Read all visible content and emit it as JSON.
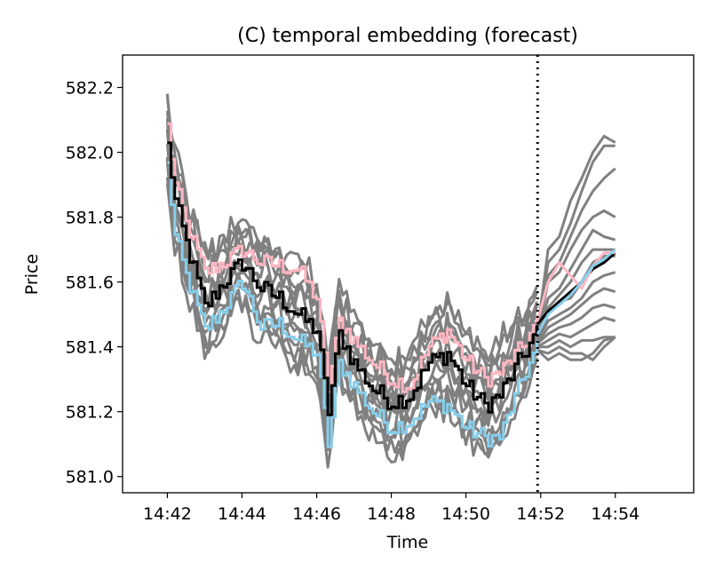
{
  "chart_data": {
    "type": "line",
    "title": "(C) temporal embedding (forecast)",
    "xlabel": "Time",
    "ylabel": "Price",
    "xlim": [
      14.68,
      14.935
    ],
    "ylim": [
      580.95,
      582.3
    ],
    "x_ticks": [
      {
        "value": 14.7,
        "label": "14:42"
      },
      {
        "value": 14.7333,
        "label": "14:44"
      },
      {
        "value": 14.7667,
        "label": "14:46"
      },
      {
        "value": 14.8,
        "label": "14:48"
      },
      {
        "value": 14.8333,
        "label": "14:50"
      },
      {
        "value": 14.8667,
        "label": "14:52"
      },
      {
        "value": 14.9,
        "label": "14:54"
      }
    ],
    "y_ticks": [
      {
        "value": 581.0,
        "label": "581.0"
      },
      {
        "value": 581.2,
        "label": "581.2"
      },
      {
        "value": 581.4,
        "label": "581.4"
      },
      {
        "value": 581.6,
        "label": "581.6"
      },
      {
        "value": 581.8,
        "label": "581.8"
      },
      {
        "value": 582.0,
        "label": "582.0"
      },
      {
        "value": 582.2,
        "label": "582.2"
      }
    ],
    "forecast_start": 14.8653,
    "colors": {
      "ensemble": "#808080",
      "mean": "#000000",
      "upper": "#ffb6c1",
      "lower": "#87ceeb",
      "divider": "#000000"
    },
    "anchors": {
      "x": [
        14.7,
        14.7033,
        14.7083,
        14.7167,
        14.725,
        14.7333,
        14.7417,
        14.75,
        14.7583,
        14.7667,
        14.7717,
        14.7767,
        14.7833,
        14.7917,
        14.8,
        14.8083,
        14.8167,
        14.825,
        14.8333,
        14.8417,
        14.8483,
        14.8583,
        14.8653
      ],
      "mean": [
        582.02,
        581.85,
        581.72,
        581.52,
        581.6,
        581.66,
        581.58,
        581.55,
        581.5,
        581.45,
        581.2,
        581.44,
        581.35,
        581.27,
        581.23,
        581.25,
        581.35,
        581.38,
        581.28,
        581.22,
        581.25,
        581.37,
        581.45
      ],
      "upper": [
        582.08,
        581.9,
        581.78,
        581.63,
        581.66,
        581.7,
        581.66,
        581.65,
        581.64,
        581.55,
        581.27,
        581.48,
        581.42,
        581.35,
        581.3,
        581.28,
        581.4,
        581.45,
        581.36,
        581.3,
        581.32,
        581.4,
        581.48
      ],
      "lower": [
        581.96,
        581.74,
        581.62,
        581.45,
        581.52,
        581.6,
        581.46,
        581.47,
        581.42,
        581.38,
        581.1,
        581.35,
        581.28,
        581.2,
        581.15,
        581.17,
        581.23,
        581.22,
        581.15,
        581.12,
        581.12,
        581.3,
        581.4
      ]
    },
    "ensemble_count": 14,
    "series": [
      {
        "name": "mean",
        "x": [
          14.8653,
          14.87,
          14.875,
          14.88,
          14.885,
          14.89,
          14.895,
          14.9
        ],
        "values": [
          581.47,
          581.51,
          581.54,
          581.57,
          581.6,
          581.64,
          581.66,
          581.69
        ]
      },
      {
        "name": "upper",
        "x": [
          14.8653,
          14.87,
          14.875,
          14.88,
          14.885,
          14.89,
          14.895,
          14.9
        ],
        "values": [
          581.48,
          581.6,
          581.66,
          581.62,
          581.58,
          581.65,
          581.69,
          581.69
        ]
      },
      {
        "name": "lower",
        "x": [
          14.8653,
          14.87,
          14.875,
          14.88,
          14.885,
          14.89,
          14.895,
          14.9
        ],
        "values": [
          581.44,
          581.5,
          581.53,
          581.56,
          581.6,
          581.65,
          581.67,
          581.7
        ]
      }
    ],
    "forecast_members": [
      [
        581.45,
        581.7,
        581.74,
        581.85,
        581.92,
        582.0,
        582.05,
        582.03
      ],
      [
        581.45,
        581.66,
        581.7,
        581.78,
        581.88,
        581.97,
        582.02,
        582.02
      ],
      [
        581.44,
        581.62,
        581.66,
        581.74,
        581.82,
        581.88,
        581.92,
        581.95
      ],
      [
        581.44,
        581.6,
        581.63,
        581.7,
        581.76,
        581.8,
        581.82,
        581.8
      ],
      [
        581.43,
        581.55,
        581.58,
        581.64,
        581.7,
        581.76,
        581.74,
        581.73
      ],
      [
        581.43,
        581.52,
        581.56,
        581.6,
        581.66,
        581.7,
        581.7,
        581.7
      ],
      [
        581.42,
        581.5,
        581.54,
        581.55,
        581.6,
        581.66,
        581.68,
        581.68
      ],
      [
        581.42,
        581.48,
        581.5,
        581.52,
        581.55,
        581.6,
        581.62,
        581.63
      ],
      [
        581.41,
        581.46,
        581.48,
        581.5,
        581.53,
        581.56,
        581.58,
        581.57
      ],
      [
        581.41,
        581.44,
        581.46,
        581.47,
        581.49,
        581.52,
        581.53,
        581.52
      ],
      [
        581.4,
        581.42,
        581.44,
        581.43,
        581.45,
        581.47,
        581.49,
        581.48
      ],
      [
        581.4,
        581.4,
        581.42,
        581.4,
        581.42,
        581.42,
        581.43,
        581.43
      ],
      [
        581.39,
        581.38,
        581.4,
        581.38,
        581.38,
        581.36,
        581.4,
        581.43
      ],
      [
        581.39,
        581.36,
        581.38,
        581.36,
        581.36,
        581.38,
        581.42,
        581.43
      ]
    ]
  }
}
